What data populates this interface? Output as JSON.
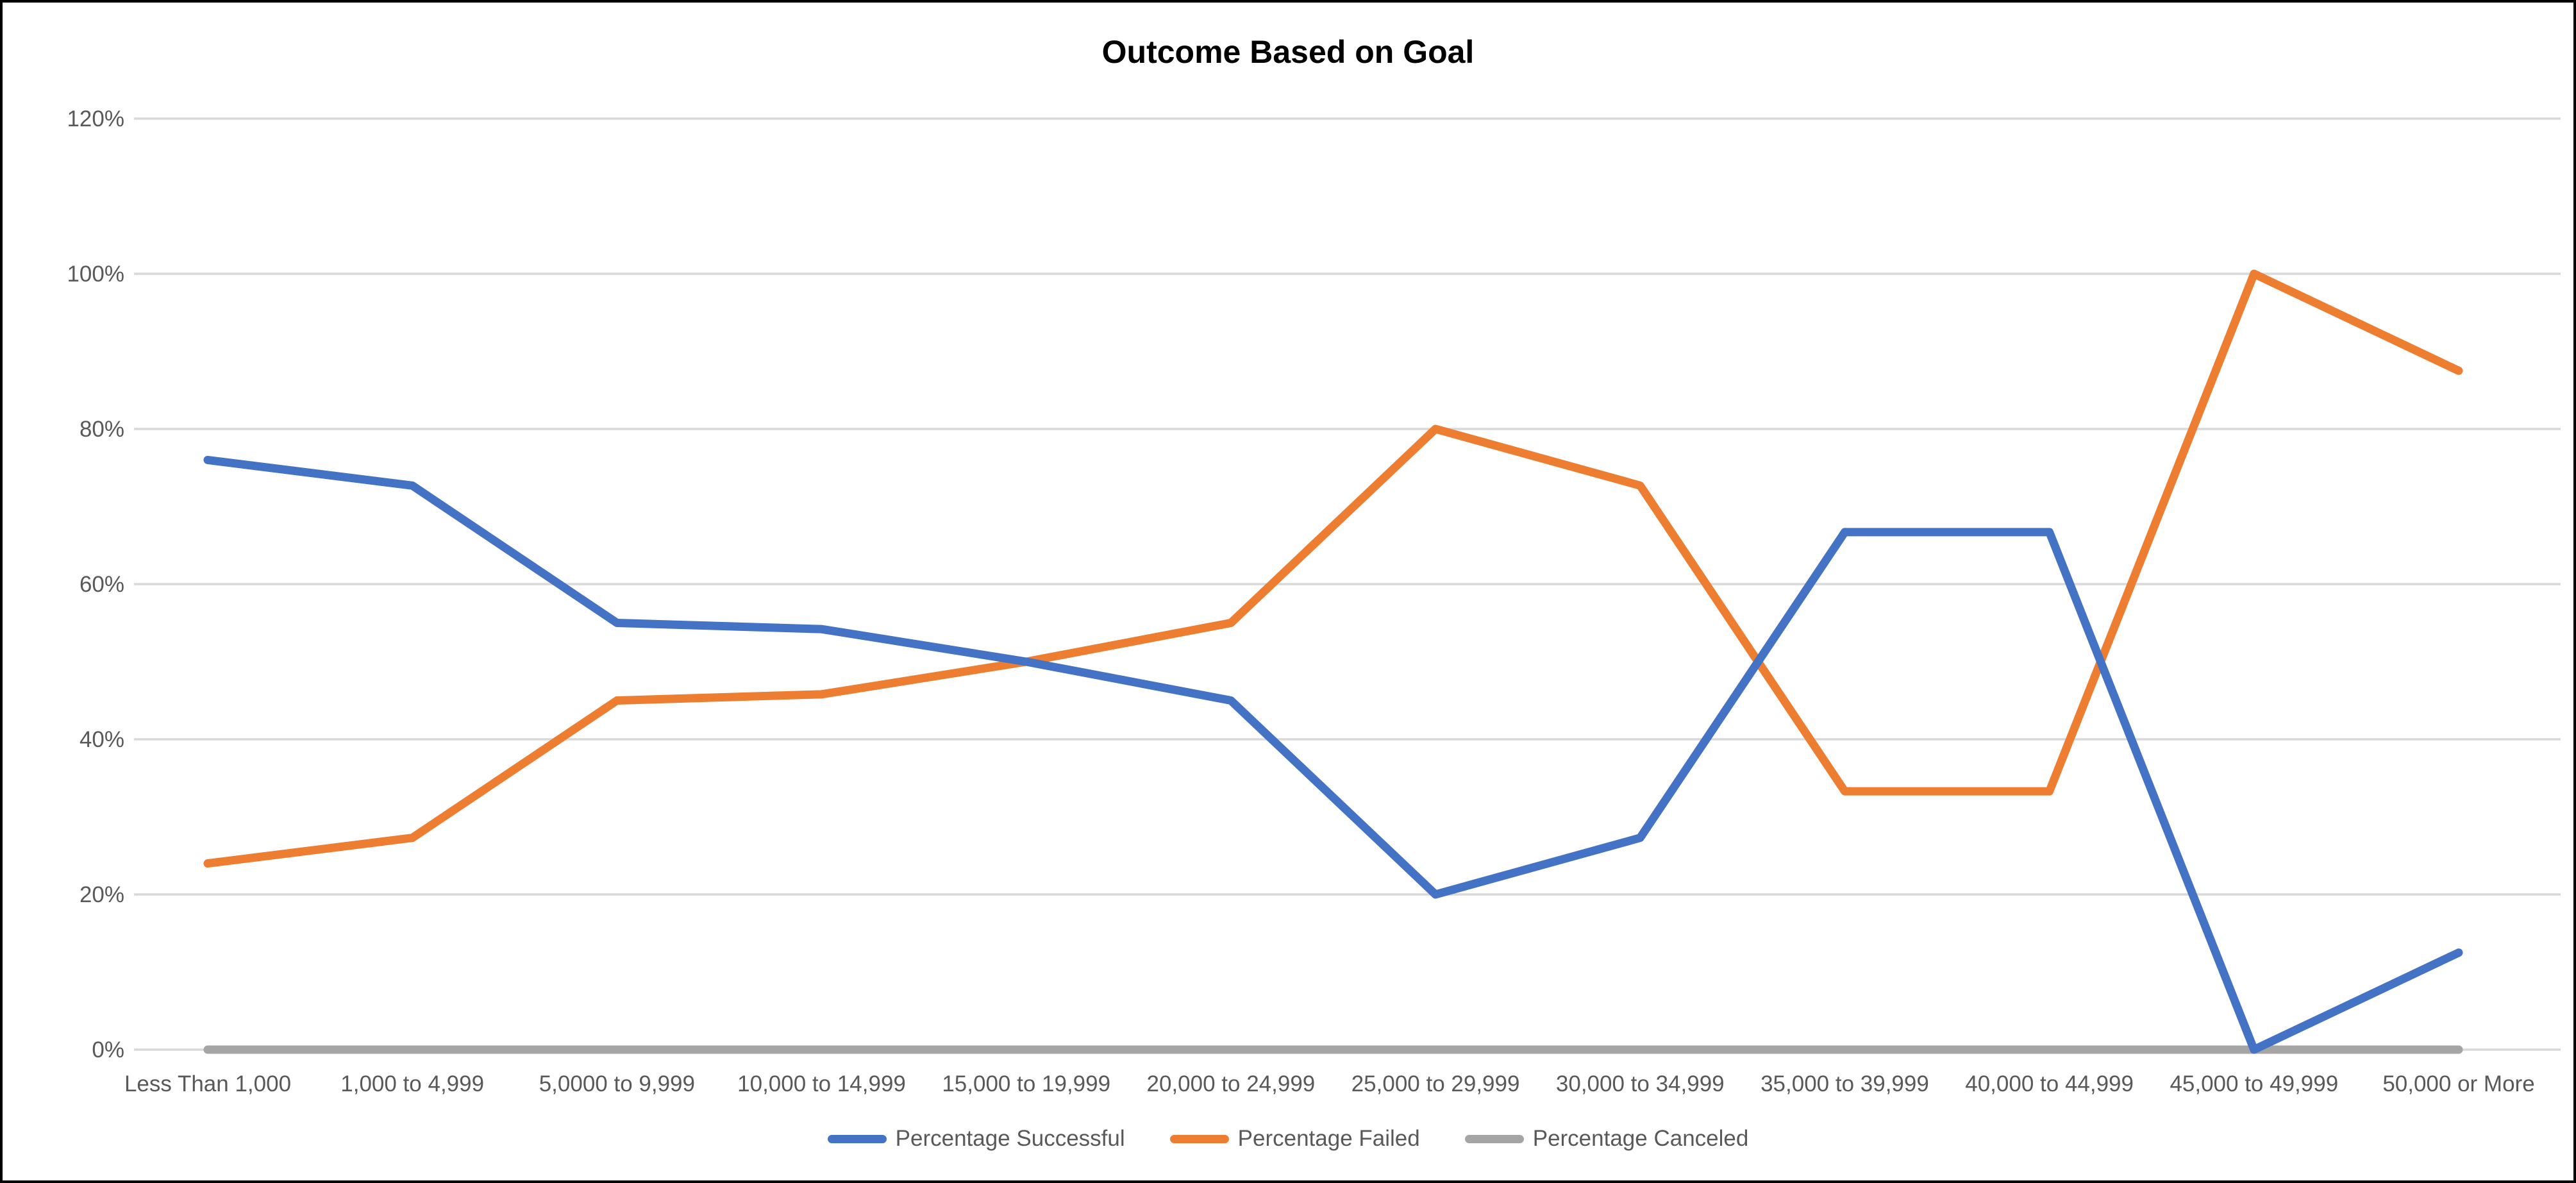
{
  "chart_data": {
    "type": "line",
    "title": "Outcome Based on Goal",
    "categories": [
      "Less Than 1,000",
      "1,000 to 4,999",
      "5,0000 to 9,999",
      "10,000 to 14,999",
      "15,000 to 19,999",
      "20,000 to 24,999",
      "25,000 to 29,999",
      "30,000 to 34,999",
      "35,000 to 39,999",
      "40,000 to 44,999",
      "45,000 to 49,999",
      "50,000 or More"
    ],
    "series": [
      {
        "name": "Percentage Successful",
        "color": "#4472C4",
        "values": [
          76,
          72.7,
          55,
          54.2,
          50,
          45,
          20,
          27.3,
          66.7,
          66.7,
          0,
          12.5
        ]
      },
      {
        "name": "Percentage Failed",
        "color": "#ED7D31",
        "values": [
          24,
          27.3,
          45,
          45.8,
          50,
          55,
          80,
          72.7,
          33.3,
          33.3,
          100,
          87.5
        ]
      },
      {
        "name": "Percentage Canceled",
        "color": "#A5A5A5",
        "values": [
          0,
          0,
          0,
          0,
          0,
          0,
          0,
          0,
          0,
          0,
          0,
          0
        ]
      }
    ],
    "xlabel": "",
    "ylabel": "",
    "ylim": [
      0,
      120
    ],
    "ytick_step": 20,
    "ytick_labels": [
      "0%",
      "20%",
      "40%",
      "60%",
      "80%",
      "100%",
      "120%"
    ],
    "grid": true,
    "legend_position": "bottom",
    "styles": {
      "gridline_color": "#D9D9D9",
      "axis_text_color": "#595959",
      "title_color": "#000000",
      "background": "#FFFFFF",
      "border_color": "#000000"
    }
  }
}
